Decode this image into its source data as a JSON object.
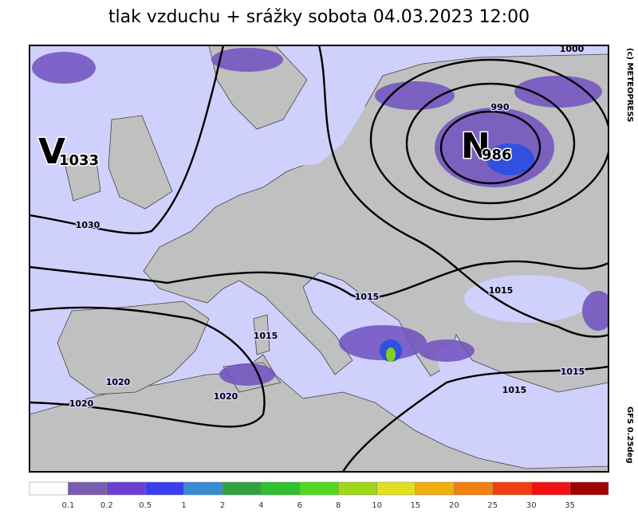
{
  "title": "tlak vzduchu + srážky  sobota 04.03.2023 12:00",
  "credit": "(c) METEOPRESS",
  "model": "GFS 0.25deg",
  "centers": [
    {
      "letter": "V",
      "value": 1033
    },
    {
      "letter": "N",
      "value": 986
    }
  ],
  "isobar_labels": [
    1000,
    990,
    1030,
    1015,
    1015,
    1015,
    1020,
    1020,
    1020,
    1015,
    1015
  ],
  "legend": {
    "labels": [
      0.1,
      0.2,
      0.5,
      1,
      2,
      4,
      6,
      8,
      10,
      15,
      20,
      25,
      30,
      35
    ],
    "colors": [
      "#ffffff",
      "#7a5cb0",
      "#6a40d0",
      "#3c3cf0",
      "#3a8cd0",
      "#30a040",
      "#30c030",
      "#50d820",
      "#a0d818",
      "#e0e020",
      "#f0b010",
      "#f08010",
      "#f04010",
      "#f01010",
      "#a00000"
    ]
  }
}
